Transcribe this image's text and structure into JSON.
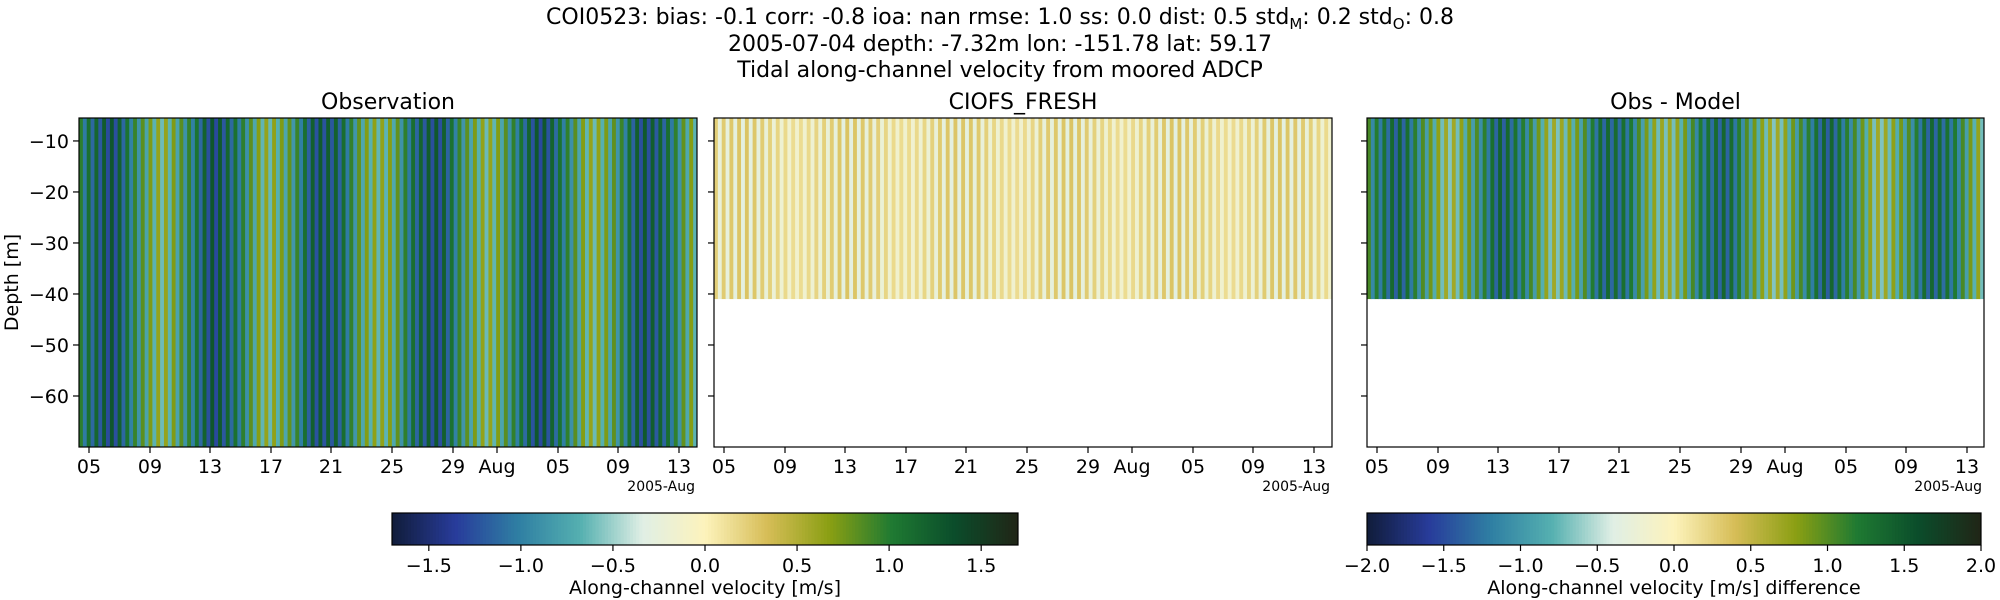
{
  "figure": {
    "title_line1_prefix": "COI0523: bias: -0.1  corr: -0.8  ioa: nan  rmse: 1.0  ss: 0.0  dist: 0.5  std",
    "title_line1_subM": "M",
    "title_line1_mid": ": 0.2  std",
    "title_line1_subO": "O",
    "title_line1_end": ": 0.8",
    "title_line2": "2005-07-04 depth: -7.32m lon: -151.78 lat: 59.17",
    "title_line3": "Tidal along-channel velocity from moored ADCP"
  },
  "chart_data": [
    {
      "type": "heatmap",
      "title": "Observation",
      "ylabel": "Depth [m]",
      "xlabel": "",
      "x_range": [
        "2005-07-04",
        "2005-08-14"
      ],
      "ylim": [
        -70,
        -5.5
      ],
      "depth_bottom": -70,
      "x_ticks": [
        "05",
        "09",
        "13",
        "17",
        "21",
        "25",
        "29",
        "Aug",
        "05",
        "09",
        "13"
      ],
      "x_offset_label": "2005-Aug",
      "y_ticks": [
        -10,
        -20,
        -30,
        -40,
        -50,
        -60
      ],
      "colormap": "delta",
      "clim": [
        -1.7,
        1.7
      ],
      "amplitude": 1.3
    },
    {
      "type": "heatmap",
      "title": "CIOFS_FRESH",
      "ylabel": "",
      "xlabel": "",
      "x_range": [
        "2005-07-04",
        "2005-08-14"
      ],
      "ylim": [
        -70,
        -5.5
      ],
      "depth_bottom": -41,
      "x_ticks": [
        "05",
        "09",
        "13",
        "17",
        "21",
        "25",
        "29",
        "Aug",
        "05",
        "09",
        "13"
      ],
      "x_offset_label": "2005-Aug",
      "y_ticks": [
        -10,
        -20,
        -30,
        -40,
        -50,
        -60
      ],
      "colormap": "delta",
      "clim": [
        -1.7,
        1.7
      ],
      "amplitude": 0.3
    },
    {
      "type": "heatmap",
      "title": "Obs - Model",
      "ylabel": "",
      "xlabel": "",
      "x_range": [
        "2005-07-04",
        "2005-08-14"
      ],
      "ylim": [
        -70,
        -5.5
      ],
      "depth_bottom": -41,
      "x_ticks": [
        "05",
        "09",
        "13",
        "17",
        "21",
        "25",
        "29",
        "Aug",
        "05",
        "09",
        "13"
      ],
      "x_offset_label": "2005-Aug",
      "y_ticks": [
        -10,
        -20,
        -30,
        -40,
        -50,
        -60
      ],
      "colormap": "delta",
      "clim": [
        -2.0,
        2.0
      ],
      "amplitude": 1.4
    }
  ],
  "colorbars": [
    {
      "label": "Along-channel velocity [m/s]",
      "ticks": [
        "−1.5",
        "−1.0",
        "−0.5",
        "0.0",
        "0.5",
        "1.0",
        "1.5"
      ],
      "tick_values": [
        -1.5,
        -1.0,
        -0.5,
        0.0,
        0.5,
        1.0,
        1.5
      ],
      "range": [
        -1.7,
        1.7
      ]
    },
    {
      "label": "Along-channel velocity [m/s] difference",
      "ticks": [
        "−2.0",
        "−1.5",
        "−1.0",
        "−0.5",
        "0.0",
        "0.5",
        "1.0",
        "1.5",
        "2.0"
      ],
      "tick_values": [
        -2.0,
        -1.5,
        -1.0,
        -0.5,
        0.0,
        0.5,
        1.0,
        1.5,
        2.0
      ],
      "range": [
        -2.0,
        2.0
      ]
    }
  ],
  "colors": {
    "cmap_stops": [
      "#111d3c",
      "#283c9b",
      "#2f7fa3",
      "#55b0b0",
      "#e0efe5",
      "#fdf3bc",
      "#d6bd57",
      "#8a9f13",
      "#1f7a32",
      "#0b4d2b",
      "#202617"
    ]
  }
}
